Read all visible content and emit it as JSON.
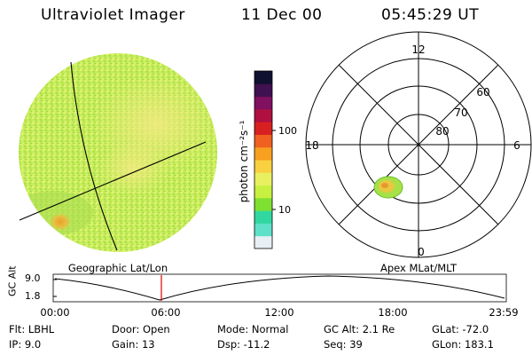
{
  "header": {
    "title": "Ultraviolet Imager",
    "date": "11 Dec 00",
    "time": "05:45:29 UT"
  },
  "colorbar": {
    "unit_label": "photon cm⁻²s⁻¹",
    "ticks": [
      "100",
      "10"
    ],
    "colors": [
      "#e8f0f4",
      "#5fe0c8",
      "#30d8a0",
      "#7ee030",
      "#c8f040",
      "#e8f060",
      "#f8d040",
      "#f8a020",
      "#f06020",
      "#d82020",
      "#b01040",
      "#801060",
      "#401050",
      "#101030"
    ]
  },
  "map_left": {
    "caption": "Geographic Lat/Lon"
  },
  "polar": {
    "caption": "Apex MLat/MLT",
    "mlt_labels": {
      "top": "12",
      "left": "18",
      "right": "6",
      "bottom": "0"
    },
    "lat_labels": [
      "60",
      "70",
      "80"
    ]
  },
  "altplot": {
    "ylabel": "GC Alt",
    "yticks": [
      "9.0",
      "1.8"
    ],
    "xticks": [
      "00:00",
      "06:00",
      "12:00",
      "18:00",
      "23:59"
    ]
  },
  "info": {
    "row1": [
      "Flt: LBHL",
      "Door: Open",
      "Mode: Normal",
      "GC Alt: 2.1 Re",
      "GLat: -72.0"
    ],
    "row2": [
      "IP: 9.0",
      "Gain: 13",
      "Dsp: -11.2",
      "Seq: 39",
      "GLon: 183.1"
    ]
  }
}
